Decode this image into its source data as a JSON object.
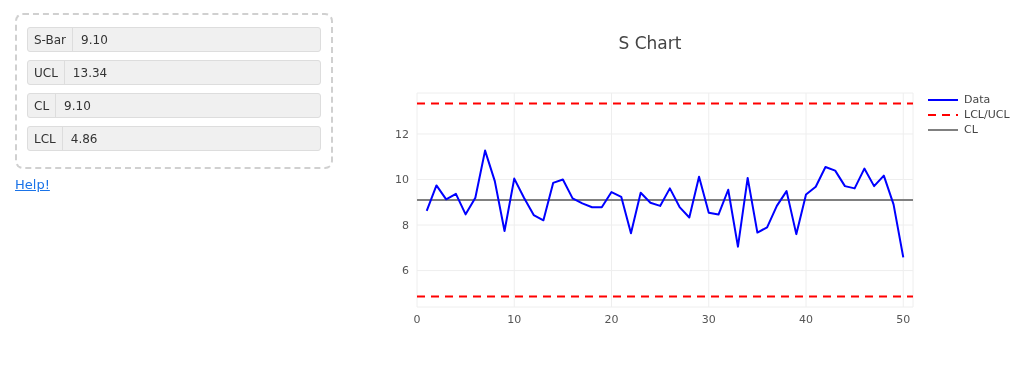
{
  "chart_data": [
    {
      "type": "other",
      "annotations": [
        "S-Bar",
        "9.10",
        "UCL",
        "13.34",
        "CL",
        "9.10",
        "LCL",
        "4.86",
        "Help!"
      ]
    },
    {
      "type": "line",
      "title": "S Chart",
      "x": [
        1,
        2,
        3,
        4,
        5,
        6,
        7,
        8,
        9,
        10,
        11,
        12,
        13,
        14,
        15,
        16,
        17,
        18,
        19,
        20,
        21,
        22,
        23,
        24,
        25,
        26,
        27,
        28,
        29,
        30,
        31,
        32,
        33,
        34,
        35,
        36,
        37,
        38,
        39,
        40,
        41,
        42,
        43,
        44,
        45,
        46,
        47,
        48,
        49,
        50
      ],
      "series": [
        {
          "name": "Data",
          "color": "#0000ff",
          "values": [
            8.62,
            9.74,
            9.13,
            9.37,
            8.47,
            9.2,
            11.27,
            9.93,
            7.74,
            10.04,
            9.2,
            8.44,
            8.21,
            9.85,
            10.0,
            9.17,
            8.95,
            8.78,
            8.78,
            9.45,
            9.24,
            7.64,
            9.42,
            8.98,
            8.84,
            9.61,
            8.79,
            8.33,
            10.12,
            8.54,
            8.46,
            9.55,
            7.05,
            10.07,
            7.67,
            7.9,
            8.84,
            9.49,
            7.6,
            9.34,
            9.68,
            10.55,
            10.39,
            9.71,
            9.61,
            10.48,
            9.71,
            10.17,
            8.91,
            6.58
          ]
        }
      ],
      "ref_lines": [
        {
          "axis": "y",
          "value": 13.34,
          "label": "LCL/UCL",
          "color": "#ff0000",
          "line_style": "dashed"
        },
        {
          "axis": "y",
          "value": 4.86,
          "color": "#ff0000",
          "line_style": "dashed"
        },
        {
          "axis": "y",
          "value": 9.1,
          "label": "CL",
          "color": "#808080",
          "line_style": "solid"
        }
      ],
      "xlim": [
        0,
        51
      ],
      "xticks": [
        0,
        10,
        20,
        30,
        40,
        50
      ],
      "ylim": [
        4.4,
        13.8
      ],
      "yticks": [
        6,
        8,
        10,
        12
      ],
      "grid": true,
      "legend": "top right",
      "marker": "none",
      "line_style": "solid"
    }
  ]
}
